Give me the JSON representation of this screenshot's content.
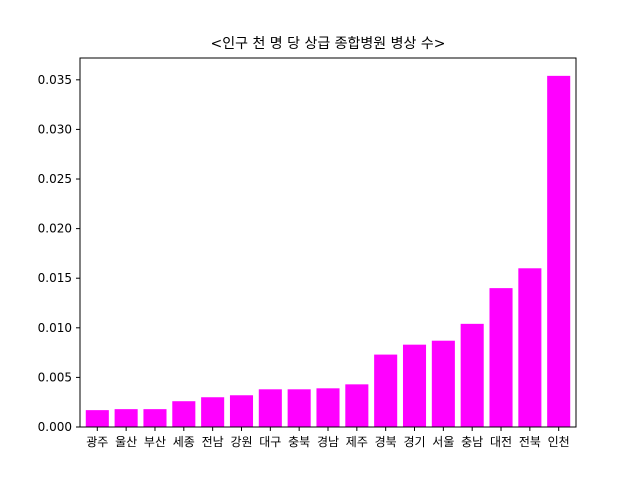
{
  "chart_data": {
    "type": "bar",
    "title": "<인구 천 명 당 상급 종합병원 병상 수>",
    "xlabel": "",
    "ylabel": "",
    "categories": [
      "광주",
      "울산",
      "부산",
      "세종",
      "전남",
      "강원",
      "대구",
      "충북",
      "경남",
      "제주",
      "경북",
      "경기",
      "서울",
      "충남",
      "대전",
      "전북",
      "인천"
    ],
    "values": [
      0.0017,
      0.0018,
      0.0018,
      0.0026,
      0.003,
      0.0032,
      0.0038,
      0.0038,
      0.0039,
      0.0043,
      0.0073,
      0.0083,
      0.0087,
      0.0104,
      0.014,
      0.016,
      0.0354
    ],
    "ylim": [
      0,
      0.0372
    ],
    "yticks": [
      "0.000",
      "0.005",
      "0.010",
      "0.015",
      "0.020",
      "0.025",
      "0.030",
      "0.035"
    ],
    "bar_color": "#ff00ff",
    "grid": false,
    "legend": "none"
  }
}
